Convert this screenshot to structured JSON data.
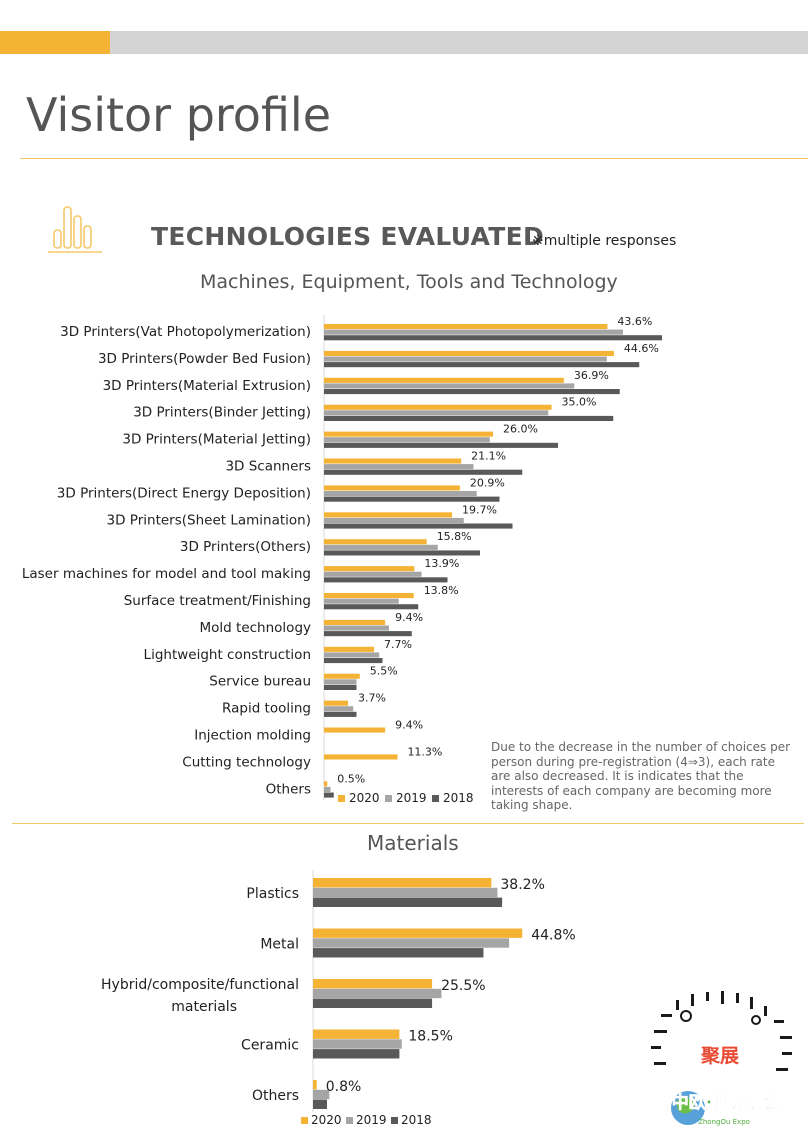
{
  "page": {
    "title": "Visitor profile"
  },
  "section": {
    "title": "TECHNOLOGIES EVALUATED",
    "note": "※multiple responses",
    "footnote": "Due to the decrease in the number of choices per person during pre-registration (4⇒3), each rate are also decreased. It is indicates that the interests of each company are becoming more taking shape."
  },
  "colors": {
    "y2020": "#f5b335",
    "y2019": "#a5a5a5",
    "y2018": "#595959",
    "accent": "#f5b335",
    "gray_bar": "#d4d4d4"
  },
  "watermark": {
    "logo_text": "聚展",
    "brand": "中欧·世界展会",
    "sub": "ZhongOu Expo"
  },
  "chart_data": [
    {
      "type": "bar",
      "orientation": "horizontal",
      "title": "Machines, Equipment, Tools and Technology",
      "legend_position": "bottom",
      "categories": [
        "3D Printers(Vat Photopolymerization)",
        "3D Printers(Powder Bed Fusion)",
        "3D Printers(Material Extrusion)",
        "3D Printers(Binder Jetting)",
        "3D Printers(Material Jetting)",
        "3D Scanners",
        "3D Printers(Direct Energy Deposition)",
        "3D Printers(Sheet Lamination)",
        "3D Printers(Others)",
        "Laser machines for model and tool making",
        "Surface treatment/Finishing",
        "Mold technology",
        "Lightweight construction",
        "Service bureau",
        "Rapid tooling",
        "Injection molding",
        "Cutting technology",
        "Others"
      ],
      "series": [
        {
          "name": "2020",
          "values": [
            43.6,
            44.6,
            36.9,
            35.0,
            26.0,
            21.1,
            20.9,
            19.7,
            15.8,
            13.9,
            13.8,
            9.4,
            7.7,
            5.5,
            3.7,
            9.4,
            11.3,
            0.5
          ]
        },
        {
          "name": "2019",
          "values": [
            46.0,
            43.5,
            38.5,
            34.5,
            25.5,
            23.0,
            23.5,
            21.5,
            17.5,
            15.0,
            11.5,
            10.0,
            8.5,
            5.0,
            4.5,
            null,
            null,
            1.0
          ]
        },
        {
          "name": "2018",
          "values": [
            52.0,
            48.5,
            45.5,
            44.5,
            36.0,
            30.5,
            27.0,
            29.0,
            24.0,
            19.0,
            14.5,
            13.5,
            9.0,
            5.0,
            5.0,
            null,
            null,
            1.5
          ]
        }
      ],
      "data_labels": [
        "43.6%",
        "44.6%",
        "36.9%",
        "35.0%",
        "26.0%",
        "21.1%",
        "20.9%",
        "19.7%",
        "15.8%",
        "13.9%",
        "13.8%",
        "9.4%",
        "7.7%",
        "5.5%",
        "3.7%",
        "9.4%",
        "11.3%",
        "0.5%"
      ],
      "units": "%",
      "grid": false
    },
    {
      "type": "bar",
      "orientation": "horizontal",
      "title": "Materials",
      "legend_position": "bottom",
      "categories": [
        "Plastics",
        "Metal",
        "Hybrid/composite/functional materials",
        "Ceramic",
        "Others"
      ],
      "category_lines": [
        [
          "Plastics"
        ],
        [
          "Metal"
        ],
        [
          "Hybrid/composite/functional",
          "materials"
        ],
        [
          "Ceramic"
        ],
        [
          "Others"
        ]
      ],
      "series": [
        {
          "name": "2020",
          "values": [
            38.2,
            44.8,
            25.5,
            18.5,
            0.8
          ]
        },
        {
          "name": "2019",
          "values": [
            39.5,
            42.0,
            27.5,
            19.0,
            3.5
          ]
        },
        {
          "name": "2018",
          "values": [
            40.5,
            36.5,
            25.5,
            18.5,
            3.0
          ]
        }
      ],
      "data_labels": [
        "38.2%",
        "44.8%",
        "25.5%",
        "18.5%",
        "0.8%"
      ],
      "units": "%",
      "grid": false
    }
  ]
}
